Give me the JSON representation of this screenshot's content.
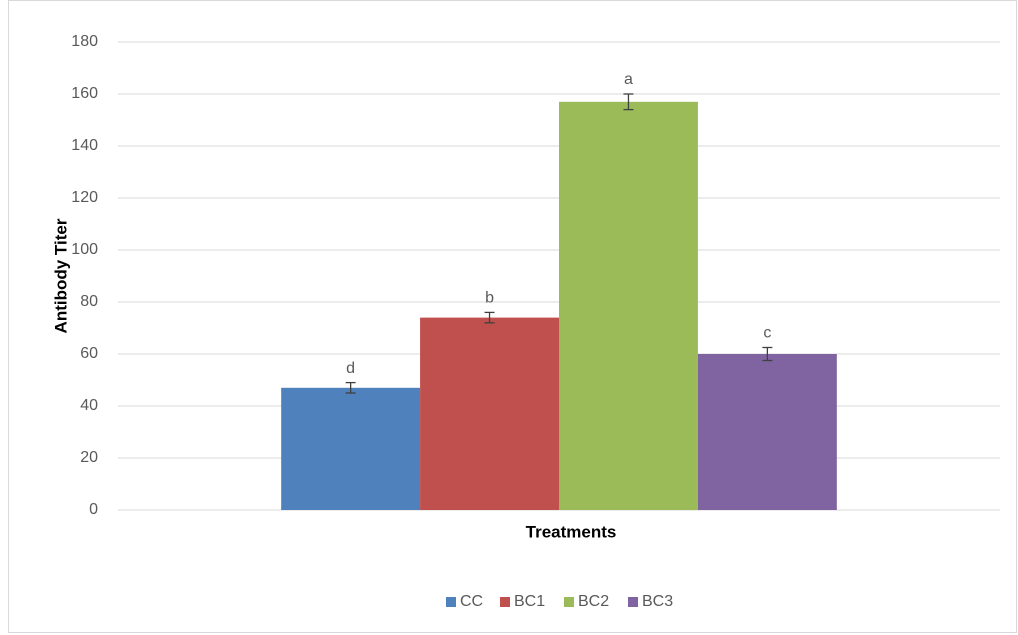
{
  "chart_data": {
    "type": "bar",
    "x_label": "Treatments",
    "y_label": "Antibody Titer",
    "categories": [
      null
    ],
    "series": [
      {
        "name": "CC",
        "color": "#4f81bd",
        "values": [
          47
        ],
        "errors": [
          2
        ],
        "annotation": "d"
      },
      {
        "name": "BC1",
        "color": "#c0504d",
        "values": [
          74
        ],
        "errors": [
          2
        ],
        "annotation": "b"
      },
      {
        "name": "BC2",
        "color": "#9bbb59",
        "values": [
          157
        ],
        "errors": [
          3
        ],
        "annotation": "a"
      },
      {
        "name": "BC3",
        "color": "#8064a2",
        "values": [
          60
        ],
        "errors": [
          2.5
        ],
        "annotation": "c"
      }
    ],
    "ylim": [
      0,
      180
    ],
    "yticks": [
      0,
      20,
      40,
      60,
      80,
      100,
      120,
      140,
      160,
      180
    ],
    "grid": true,
    "legend": "bottom"
  }
}
